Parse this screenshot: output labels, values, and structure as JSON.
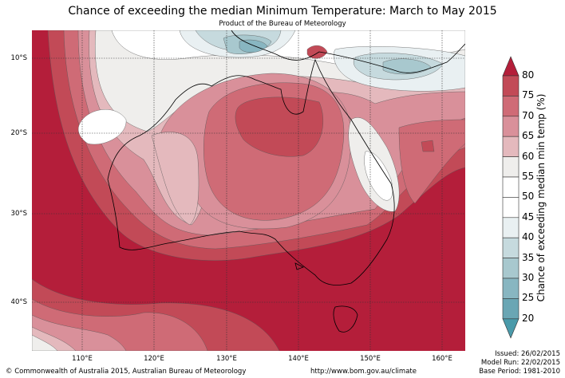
{
  "title": "Chance of exceeding the median Minimum Temperature: March to May 2015",
  "subtitle": "Product of the Bureau of Meteorology",
  "lat_labels": [
    "10°S",
    "20°S",
    "30°S",
    "40°S"
  ],
  "lon_labels": [
    "110°E",
    "120°E",
    "130°E",
    "140°E",
    "150°E",
    "160°E"
  ],
  "colorbar": {
    "title": "Chance of exceeding median min temp (%)",
    "ticks": [
      "80",
      "75",
      "70",
      "65",
      "60",
      "55",
      "50",
      "45",
      "40",
      "35",
      "30",
      "25",
      "20"
    ],
    "colors": [
      "#b41e3a",
      "#c24a57",
      "#cf6b76",
      "#d9909a",
      "#e4b9bd",
      "#efeeec",
      "#ffffff",
      "#ffffff",
      "#e9f0f2",
      "#c6dade",
      "#a8c8ce",
      "#88b6c1",
      "#6aa6b4",
      "#4a9aaa"
    ]
  },
  "footer": {
    "copyright": "© Commonwealth of Australia 2015, Australian Bureau of Meteorology",
    "url": "http://www.bom.gov.au/climate",
    "issued": "Issued: 26/02/2015",
    "model_run": "Model Run: 22/02/2015",
    "base_period": "Base Period: 1981-2010"
  }
}
